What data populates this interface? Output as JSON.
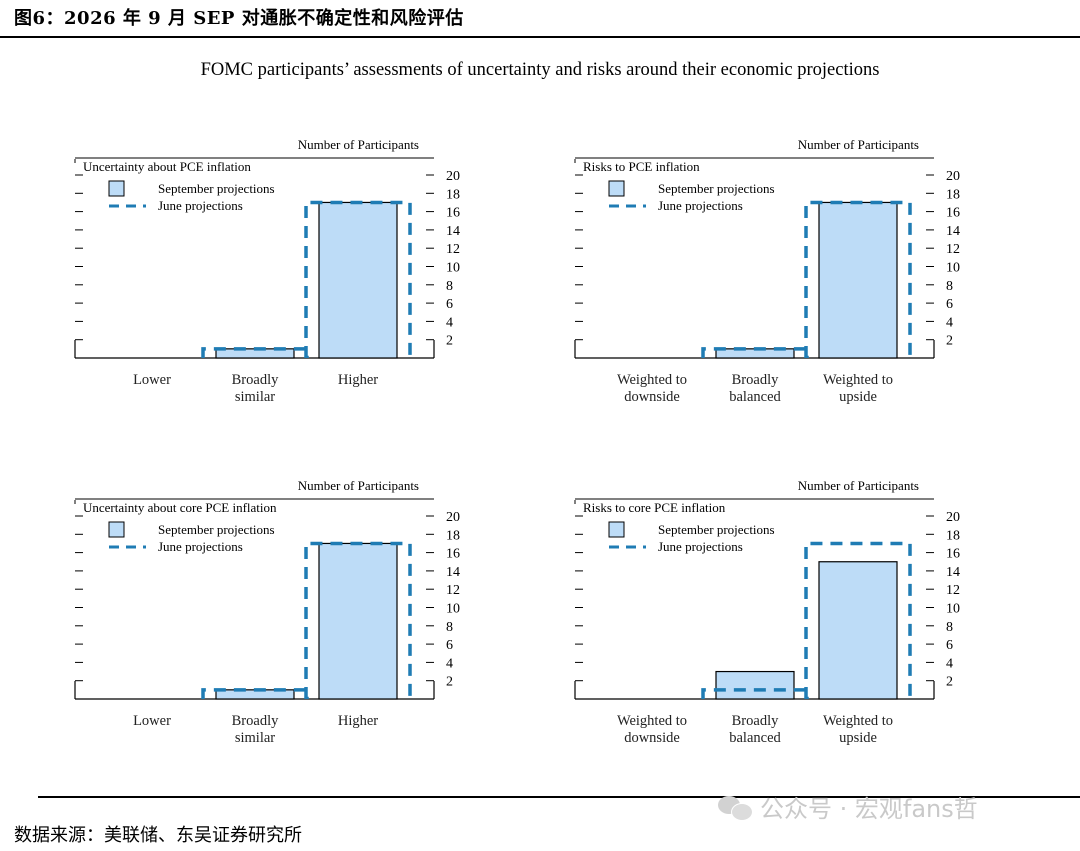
{
  "figure_title": "图6：2026 年 9 月 SEP 对通胀不确定性和风险评估",
  "subtitle": "FOMC participants’ assessments of uncertainty and risks around their economic projections",
  "source": "数据来源：美联储、东吴证券研究所",
  "watermark": "公众号 · 宏观fans哲",
  "colors": {
    "bar_fill": "#BDDCF7",
    "june_line": "#1F7CB4",
    "axis": "#000000"
  },
  "chart_data": [
    {
      "type": "bar",
      "title": "Uncertainty about PCE inflation",
      "ylabel": "Number of Participants",
      "categories": [
        [
          "Lower"
        ],
        [
          "Broadly",
          "similar"
        ],
        [
          "Higher"
        ]
      ],
      "ylim": [
        0,
        20
      ],
      "yticks": [
        2,
        4,
        6,
        8,
        10,
        12,
        14,
        16,
        18,
        20
      ],
      "legend": [
        "September projections",
        "June projections"
      ],
      "series": [
        {
          "name": "September projections",
          "values": [
            0,
            1,
            17
          ]
        },
        {
          "name": "June projections",
          "values": [
            0,
            1,
            17
          ]
        }
      ]
    },
    {
      "type": "bar",
      "title": "Risks to PCE inflation",
      "ylabel": "Number of Participants",
      "categories": [
        [
          "Weighted to",
          "downside"
        ],
        [
          "Broadly",
          "balanced"
        ],
        [
          "Weighted to",
          "upside"
        ]
      ],
      "ylim": [
        0,
        20
      ],
      "yticks": [
        2,
        4,
        6,
        8,
        10,
        12,
        14,
        16,
        18,
        20
      ],
      "legend": [
        "September projections",
        "June projections"
      ],
      "series": [
        {
          "name": "September projections",
          "values": [
            0,
            1,
            17
          ]
        },
        {
          "name": "June projections",
          "values": [
            0,
            1,
            17
          ]
        }
      ]
    },
    {
      "type": "bar",
      "title": "Uncertainty about core PCE inflation",
      "ylabel": "Number of Participants",
      "categories": [
        [
          "Lower"
        ],
        [
          "Broadly",
          "similar"
        ],
        [
          "Higher"
        ]
      ],
      "ylim": [
        0,
        20
      ],
      "yticks": [
        2,
        4,
        6,
        8,
        10,
        12,
        14,
        16,
        18,
        20
      ],
      "legend": [
        "September projections",
        "June projections"
      ],
      "series": [
        {
          "name": "September projections",
          "values": [
            0,
            1,
            17
          ]
        },
        {
          "name": "June projections",
          "values": [
            0,
            1,
            17
          ]
        }
      ]
    },
    {
      "type": "bar",
      "title": "Risks to core PCE inflation",
      "ylabel": "Number of Participants",
      "categories": [
        [
          "Weighted to",
          "downside"
        ],
        [
          "Broadly",
          "balanced"
        ],
        [
          "Weighted to",
          "upside"
        ]
      ],
      "ylim": [
        0,
        20
      ],
      "yticks": [
        2,
        4,
        6,
        8,
        10,
        12,
        14,
        16,
        18,
        20
      ],
      "legend": [
        "September projections",
        "June projections"
      ],
      "series": [
        {
          "name": "September projections",
          "values": [
            0,
            3,
            15
          ]
        },
        {
          "name": "June projections",
          "values": [
            0,
            1,
            17
          ]
        }
      ]
    }
  ]
}
